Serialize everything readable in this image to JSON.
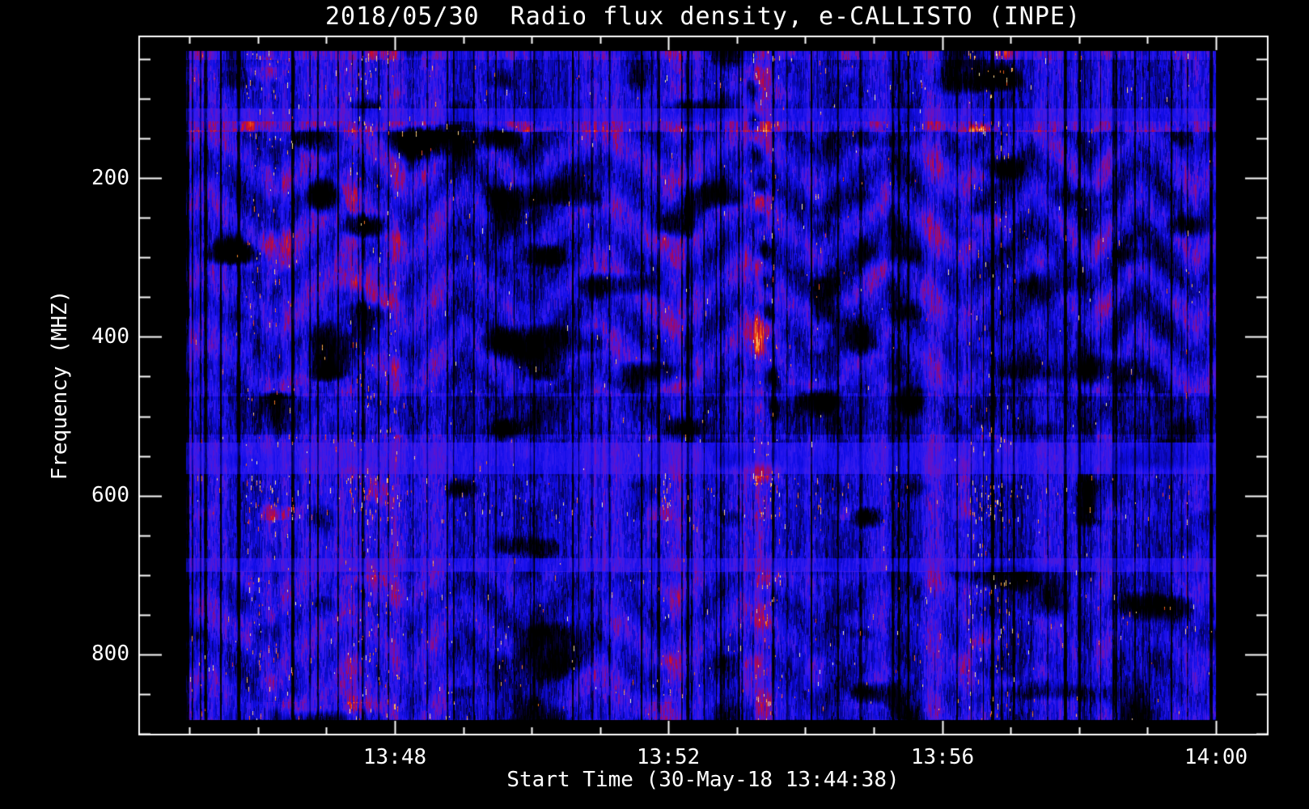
{
  "title": "2018/05/30  Radio flux density, e-CALLISTO (INPE)",
  "axes": {
    "x": {
      "label": "Start Time (30-May-18 13:44:38)",
      "tick_labels": [
        "13:48",
        "13:52",
        "13:56",
        "14:00"
      ],
      "minor_tick_interval_minutes": 1
    },
    "y": {
      "label": "Frequency (MHZ)",
      "tick_labels": [
        "200",
        "400",
        "600",
        "800"
      ],
      "tick_values": [
        200,
        400,
        600,
        800
      ],
      "minor_tick_interval_mhz": 50,
      "inverted": true
    }
  },
  "colors": {
    "background": "#000000",
    "foreground": "#ffffff",
    "base_blue": "#1210eb",
    "hot_red": "#d71212",
    "hot_yellow": "#fff09a"
  },
  "chart_data": {
    "type": "heatmap",
    "title": "2018/05/30  Radio flux density, e-CALLISTO (INPE)",
    "xlabel": "Start Time (30-May-18 13:44:38)",
    "ylabel": "Frequency (MHZ)",
    "x_start": "13:44:38",
    "x_end": "14:00:00",
    "x_tick_labels": [
      "13:48",
      "13:52",
      "13:56",
      "14:00"
    ],
    "y_tick_values_mhz": [
      200,
      400,
      600,
      800
    ],
    "y_range_mhz": [
      40,
      883
    ],
    "y_axis_inverted": true,
    "legend": "none",
    "grid": false,
    "colormap_description": "black-blue-purple-red-orange-yellow intensity scale",
    "render": {
      "seed": 20180530,
      "base": 0.37,
      "palette": [
        [
          0.0,
          0,
          0,
          0
        ],
        [
          0.13,
          5,
          0,
          50
        ],
        [
          0.25,
          8,
          6,
          150
        ],
        [
          0.37,
          18,
          14,
          235
        ],
        [
          0.48,
          55,
          28,
          238
        ],
        [
          0.58,
          105,
          18,
          195
        ],
        [
          0.68,
          160,
          8,
          95
        ],
        [
          0.78,
          215,
          18,
          28
        ],
        [
          0.88,
          250,
          125,
          22
        ],
        [
          1.0,
          255,
          252,
          190
        ]
      ],
      "bands": [
        {
          "f": [
            40,
            50
          ],
          "adj": 0.08,
          "red": 0.9,
          "speckle": 0.004
        },
        {
          "f": [
            60,
            100
          ],
          "red": 0.35,
          "speckle": 0.002
        },
        {
          "f": [
            112,
            128
          ],
          "adj": 0.08,
          "smooth": 0.6
        },
        {
          "f": [
            129,
            141
          ],
          "adj": 0.15,
          "red": 1.2,
          "speckle": 0.003
        },
        {
          "f": [
            240,
            460
          ],
          "red": 0.4
        },
        {
          "f": [
            475,
            522
          ],
          "adj": -0.1
        },
        {
          "f": [
            524,
            532
          ],
          "red": 0.6,
          "speckle": 0.003
        },
        {
          "f": [
            533,
            572
          ],
          "adj": 0.09,
          "smooth": 0.7
        },
        {
          "f": [
            575,
            630
          ],
          "red": 0.7,
          "speckle": 0.006
        },
        {
          "f": [
            679,
            695
          ],
          "adj": 0.09,
          "smooth": 0.6
        },
        {
          "f": [
            700,
            860
          ],
          "red": 0.4,
          "speckle": 0.0018
        },
        {
          "f": [
            860,
            883
          ],
          "red": 0.6,
          "speckle": 0.002
        }
      ],
      "chevrons": [
        {
          "f": [
            140,
            470
          ],
          "amp": 0.13
        },
        {
          "f": [
            480,
            528
          ],
          "amp": 0.06
        },
        {
          "f": [
            695,
            880
          ],
          "amp": 0.1
        }
      ],
      "dark_streak": {
        "x": [
          930,
          958
        ],
        "dy": [
          35,
          460
        ],
        "width": 8,
        "depth": 0.42
      }
    }
  }
}
